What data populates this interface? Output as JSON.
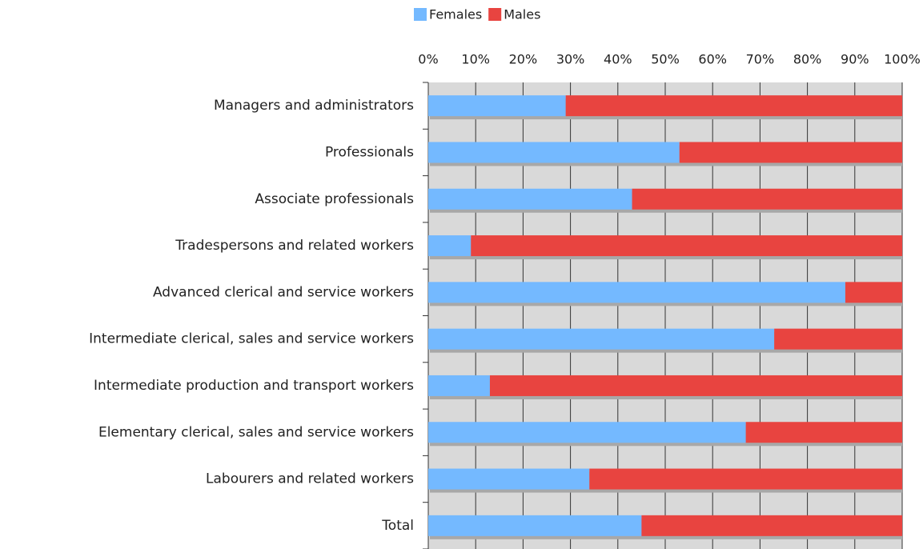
{
  "chart_data": {
    "type": "stacked-bar-horizontal",
    "categories": [
      "Managers and administrators",
      "Professionals",
      "Associate professionals",
      "Tradespersons and related workers",
      "Advanced clerical and service workers",
      "Intermediate clerical, sales and service workers",
      "Intermediate production and transport workers",
      "Elementary clerical, sales and service workers",
      "Labourers and related workers",
      "Total"
    ],
    "series": [
      {
        "name": "Females",
        "color": "#74b9ff",
        "values": [
          29,
          53,
          43,
          9,
          88,
          73,
          13,
          67,
          34,
          45
        ]
      },
      {
        "name": "Males",
        "color": "#e84440",
        "values": [
          71,
          47,
          57,
          91,
          12,
          27,
          87,
          33,
          66,
          55
        ]
      }
    ],
    "xlim": [
      0,
      100
    ],
    "xticks": [
      {
        "value": 0,
        "label": "0%"
      },
      {
        "value": 10,
        "label": "10%"
      },
      {
        "value": 20,
        "label": "20%"
      },
      {
        "value": 30,
        "label": "30%"
      },
      {
        "value": 40,
        "label": "40%"
      },
      {
        "value": 50,
        "label": "50%"
      },
      {
        "value": 60,
        "label": "60%"
      },
      {
        "value": 70,
        "label": "70%"
      },
      {
        "value": 80,
        "label": "80%"
      },
      {
        "value": 90,
        "label": "90%"
      },
      {
        "value": 100,
        "label": "100%"
      }
    ],
    "grid": true,
    "legend": "top"
  }
}
